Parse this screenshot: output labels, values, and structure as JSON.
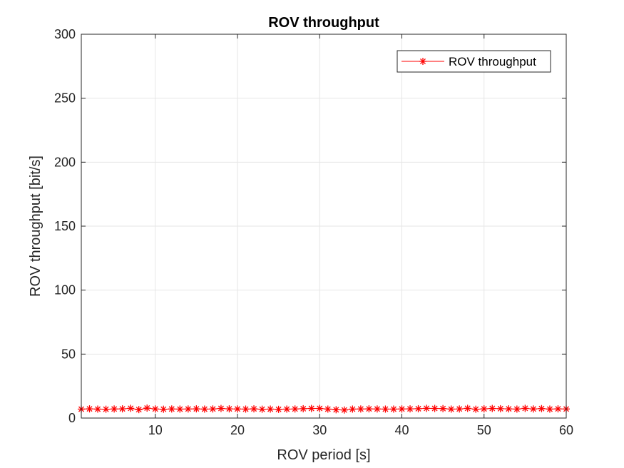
{
  "chart_data": {
    "type": "line",
    "title": "ROV throughput",
    "xlabel": "ROV period [s]",
    "ylabel": "ROV throughput [bit/s]",
    "xlim": [
      1,
      60
    ],
    "ylim": [
      0,
      300
    ],
    "xticks": [
      10,
      20,
      30,
      40,
      50,
      60
    ],
    "yticks": [
      0,
      50,
      100,
      150,
      200,
      250,
      300
    ],
    "grid": true,
    "legend": {
      "location": "top-right"
    },
    "colors": {
      "series": "#ff0000",
      "grid": "#e6e6e6",
      "axis": "#262626"
    },
    "series": [
      {
        "name": "ROV throughput",
        "marker": "asterisk",
        "x": [
          1,
          2,
          3,
          4,
          5,
          6,
          7,
          8,
          9,
          10,
          11,
          12,
          13,
          14,
          15,
          16,
          17,
          18,
          19,
          20,
          21,
          22,
          23,
          24,
          25,
          26,
          27,
          28,
          29,
          30,
          31,
          32,
          33,
          34,
          35,
          36,
          37,
          38,
          39,
          40,
          41,
          42,
          43,
          44,
          45,
          46,
          47,
          48,
          49,
          50,
          51,
          52,
          53,
          54,
          55,
          56,
          57,
          58,
          59,
          60
        ],
        "y": [
          7.0,
          7.2,
          7.0,
          6.9,
          7.1,
          7.2,
          7.6,
          6.6,
          7.8,
          7.1,
          6.9,
          7.1,
          7.0,
          7.1,
          7.2,
          7.0,
          7.1,
          7.5,
          7.2,
          7.1,
          7.0,
          7.2,
          6.9,
          7.0,
          6.8,
          7.0,
          7.1,
          7.3,
          7.5,
          7.5,
          7.0,
          6.5,
          6.3,
          7.0,
          7.1,
          7.2,
          7.1,
          7.0,
          7.0,
          7.1,
          7.2,
          7.3,
          7.6,
          7.5,
          7.4,
          7.0,
          7.1,
          7.6,
          6.9,
          7.2,
          7.5,
          7.3,
          7.2,
          7.0,
          7.6,
          7.1,
          7.4,
          7.0,
          7.2,
          7.1
        ]
      }
    ]
  }
}
